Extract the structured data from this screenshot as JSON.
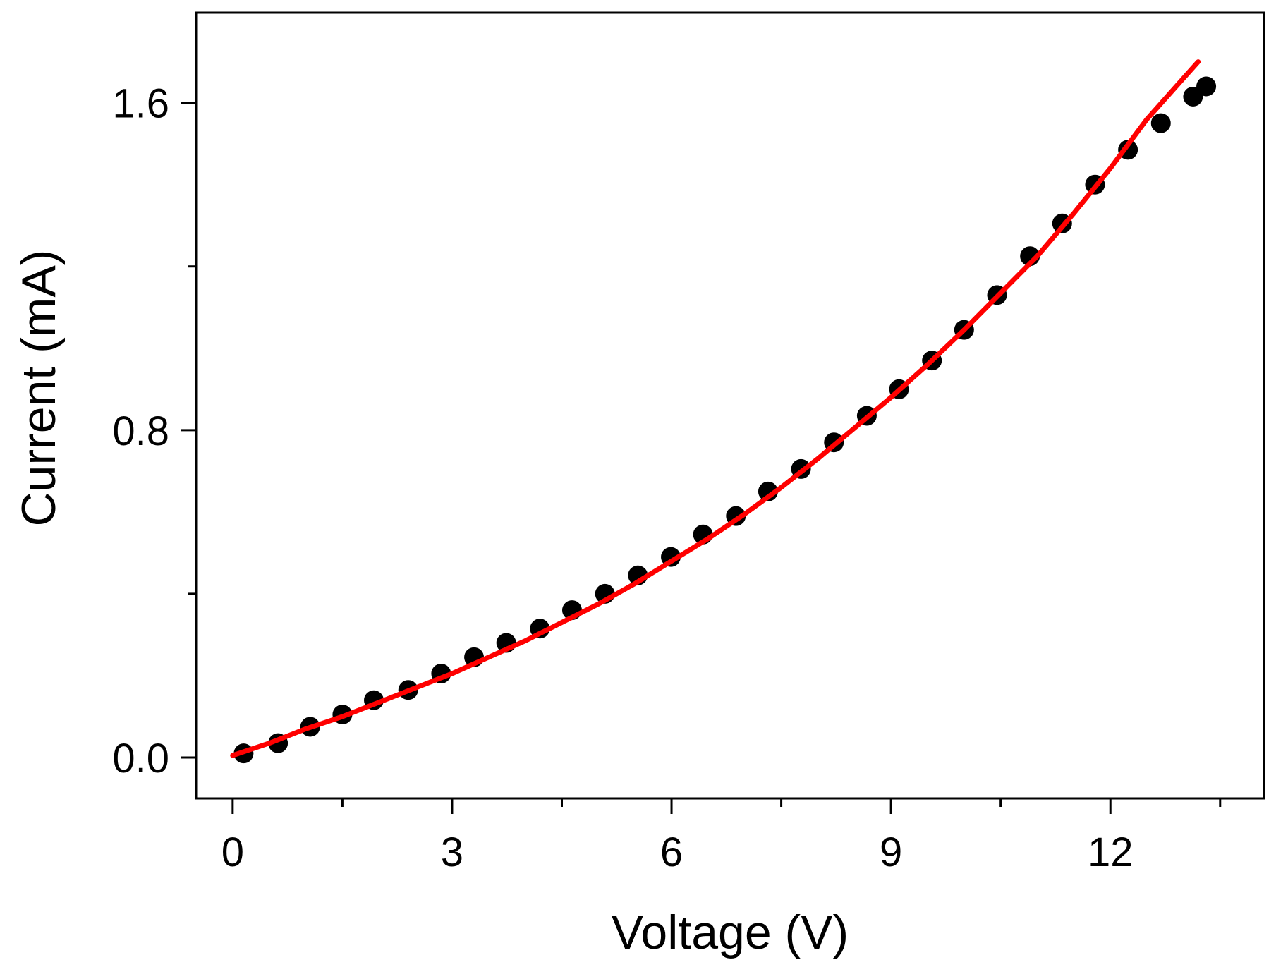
{
  "chart_data": {
    "type": "scatter",
    "title": "",
    "xlabel": "Voltage (V)",
    "ylabel": "Current (mA)",
    "xlim": [
      -0.5,
      14.1
    ],
    "ylim": [
      -0.1,
      1.82
    ],
    "x_ticks": [
      0,
      3,
      6,
      9,
      12
    ],
    "x_minor_ticks": [
      1.5,
      4.5,
      7.5,
      10.5,
      13.5
    ],
    "y_ticks": [
      0.0,
      0.8,
      1.6
    ],
    "y_minor_ticks": [
      0.4,
      1.2
    ],
    "x_tick_labels": [
      "0",
      "3",
      "6",
      "9",
      "12"
    ],
    "y_tick_labels": [
      "0.0",
      "0.8",
      "1.6"
    ],
    "grid": false,
    "legend": "none",
    "series": [
      {
        "type": "scatter",
        "color": "#000000",
        "x": [
          0.15,
          0.62,
          1.06,
          1.5,
          1.93,
          2.4,
          2.85,
          3.3,
          3.74,
          4.2,
          4.64,
          5.09,
          5.54,
          5.99,
          6.43,
          6.88,
          7.32,
          7.77,
          8.22,
          8.67,
          9.11,
          9.56,
          10.0,
          10.45,
          10.9,
          11.34,
          11.79,
          12.24,
          12.69,
          13.13,
          13.31
        ],
        "y": [
          0.01,
          0.035,
          0.075,
          0.105,
          0.14,
          0.165,
          0.205,
          0.245,
          0.28,
          0.315,
          0.36,
          0.4,
          0.445,
          0.49,
          0.545,
          0.59,
          0.65,
          0.705,
          0.77,
          0.835,
          0.9,
          0.97,
          1.045,
          1.13,
          1.225,
          1.305,
          1.4,
          1.485,
          1.55,
          1.615,
          1.64
        ]
      },
      {
        "type": "line",
        "color": "#ff0000",
        "x": [
          0.0,
          0.5,
          1.0,
          1.5,
          2.0,
          2.5,
          3.0,
          3.5,
          4.0,
          4.5,
          5.0,
          5.5,
          6.0,
          6.5,
          7.0,
          7.5,
          8.0,
          8.5,
          9.0,
          9.5,
          10.0,
          10.5,
          11.0,
          11.5,
          12.0,
          12.5,
          13.0,
          13.2
        ],
        "y": [
          0.005,
          0.035,
          0.07,
          0.1,
          0.135,
          0.17,
          0.205,
          0.245,
          0.285,
          0.33,
          0.375,
          0.425,
          0.48,
          0.535,
          0.595,
          0.66,
          0.73,
          0.805,
          0.88,
          0.96,
          1.045,
          1.135,
          1.225,
          1.33,
          1.44,
          1.56,
          1.66,
          1.7
        ]
      }
    ]
  }
}
